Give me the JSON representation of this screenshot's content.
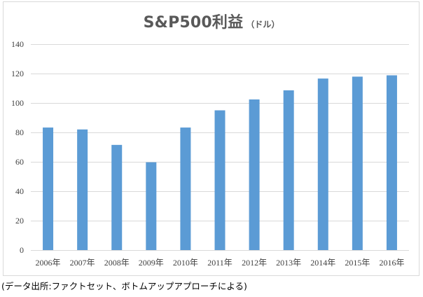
{
  "chart_data": {
    "type": "bar",
    "title": "S&P500利益",
    "title_unit": "（ドル）",
    "categories": [
      "2006年",
      "2007年",
      "2008年",
      "2009年",
      "2010年",
      "2011年",
      "2012年",
      "2013年",
      "2014年",
      "2015年",
      "2016年"
    ],
    "series": [
      {
        "values": [
          83.3,
          82,
          71.5,
          59.7,
          83.3,
          95,
          102.4,
          108.6,
          116.6,
          117.9,
          118.8
        ],
        "color": "#5b9bd5"
      }
    ],
    "xlabel": "",
    "ylabel": "",
    "ylim": [
      0,
      140
    ],
    "yticks": [
      0,
      20,
      40,
      60,
      80,
      100,
      120,
      140
    ],
    "grid": true,
    "legend": "none"
  },
  "source_note": "(データ出所:ファクトセット、ボトムアップアプローチによる)"
}
